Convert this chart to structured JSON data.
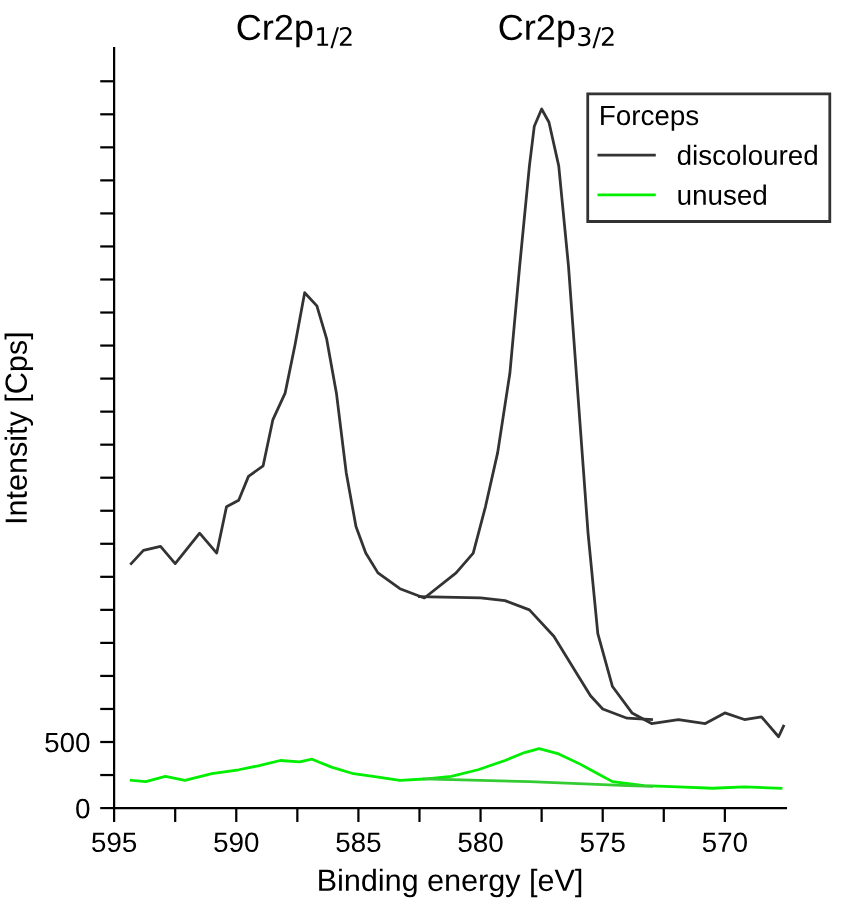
{
  "chart_data": {
    "type": "line",
    "xlabel": "Binding energy [eV]",
    "ylabel": "Intensity [Cps]",
    "legend_title": "Forceps",
    "legend": "top right",
    "grid": false,
    "annotations": [
      "Cr2p$_{1/2}$",
      "Cr2p$_{3/2}$"
    ],
    "xlim": [
      595,
      567.5
    ],
    "xticks": [
      595,
      {
        "value": 592.5,
        "label": null
      },
      590,
      {
        "value": 587.5,
        "label": null
      },
      585,
      {
        "value": 582.5,
        "label": null
      },
      580,
      {
        "value": 577.5,
        "label": null
      },
      575,
      {
        "value": 572.5,
        "label": null
      },
      570
    ],
    "ylim": [
      0,
      5750
    ],
    "yticks": [
      0,
      {
        "value": 250,
        "label": null
      },
      500,
      {
        "value": 750,
        "label": null
      },
      {
        "value": 1000,
        "label": null
      },
      {
        "value": 1250,
        "label": null
      },
      {
        "value": 1500,
        "label": null
      },
      {
        "value": 1750,
        "label": null
      },
      {
        "value": 2000,
        "label": null
      },
      {
        "value": 2250,
        "label": null
      },
      {
        "value": 2500,
        "label": null
      },
      {
        "value": 2750,
        "label": null
      },
      {
        "value": 3000,
        "label": null
      },
      {
        "value": 3250,
        "label": null
      },
      {
        "value": 3500,
        "label": null
      },
      {
        "value": 3750,
        "label": null
      },
      {
        "value": 4000,
        "label": null
      },
      {
        "value": 4250,
        "label": null
      },
      {
        "value": 4500,
        "label": null
      },
      {
        "value": 4750,
        "label": null
      },
      {
        "value": 5000,
        "label": null
      },
      {
        "value": 5250,
        "label": null
      },
      {
        "value": 5500,
        "label": null
      }
    ],
    "series": [
      {
        "name": "discoloured",
        "color": "#333333",
        "x": [
          594.3,
          593.8,
          593.1,
          592.5,
          591.5,
          590.8,
          590.4,
          589.9,
          589.5,
          588.9,
          588.5,
          588.0,
          587.6,
          587.2,
          586.7,
          586.3,
          585.9,
          585.5,
          585.1,
          584.7,
          584.2,
          583.3,
          582.3,
          581.0,
          580.3,
          579.8,
          579.3,
          578.8,
          578.4,
          578.0,
          577.8,
          577.5,
          577.2,
          576.8,
          576.4,
          576.0,
          575.6,
          575.2,
          574.6,
          573.8,
          573.0,
          571.9,
          570.8,
          570.0,
          569.2,
          568.5,
          567.8,
          567.6
        ],
        "values": [
          1850,
          1950,
          1980,
          1850,
          2080,
          1930,
          2280,
          2330,
          2510,
          2590,
          2940,
          3140,
          3500,
          3900,
          3800,
          3550,
          3140,
          2540,
          2130,
          1930,
          1780,
          1660,
          1590,
          1780,
          1930,
          2280,
          2690,
          3290,
          4100,
          4860,
          5160,
          5290,
          5190,
          4860,
          4100,
          3090,
          2080,
          1320,
          920,
          720,
          640,
          670,
          640,
          720,
          670,
          690,
          540,
          620
        ]
      },
      {
        "name": "unused",
        "color": "#00ee00",
        "x": [
          594.3,
          593.7,
          592.9,
          592.1,
          591.0,
          589.9,
          589.1,
          588.2,
          587.4,
          586.9,
          586.1,
          585.2,
          584.4,
          583.3,
          582.3,
          581.2,
          580.1,
          579.0,
          578.2,
          577.6,
          576.8,
          576.0,
          575.2,
          574.6,
          573.3,
          571.9,
          570.5,
          569.2,
          567.7
        ],
        "values": [
          210,
          200,
          240,
          210,
          260,
          290,
          320,
          360,
          350,
          370,
          310,
          260,
          240,
          210,
          220,
          240,
          290,
          360,
          420,
          450,
          410,
          340,
          260,
          200,
          170,
          160,
          150,
          160,
          150
        ]
      },
      {
        "color": "#333333",
        "x": [
          582.5,
          580,
          579,
          578,
          577,
          576,
          575.5,
          575,
          574,
          573
        ],
        "values": [
          1600,
          1590,
          1570,
          1500,
          1300,
          1000,
          850,
          750,
          680,
          670
        ]
      },
      {
        "color": "#33cc33",
        "x": [
          582.3,
          580,
          578,
          576,
          574,
          573
        ],
        "values": [
          220,
          210,
          200,
          185,
          170,
          165
        ]
      }
    ]
  }
}
